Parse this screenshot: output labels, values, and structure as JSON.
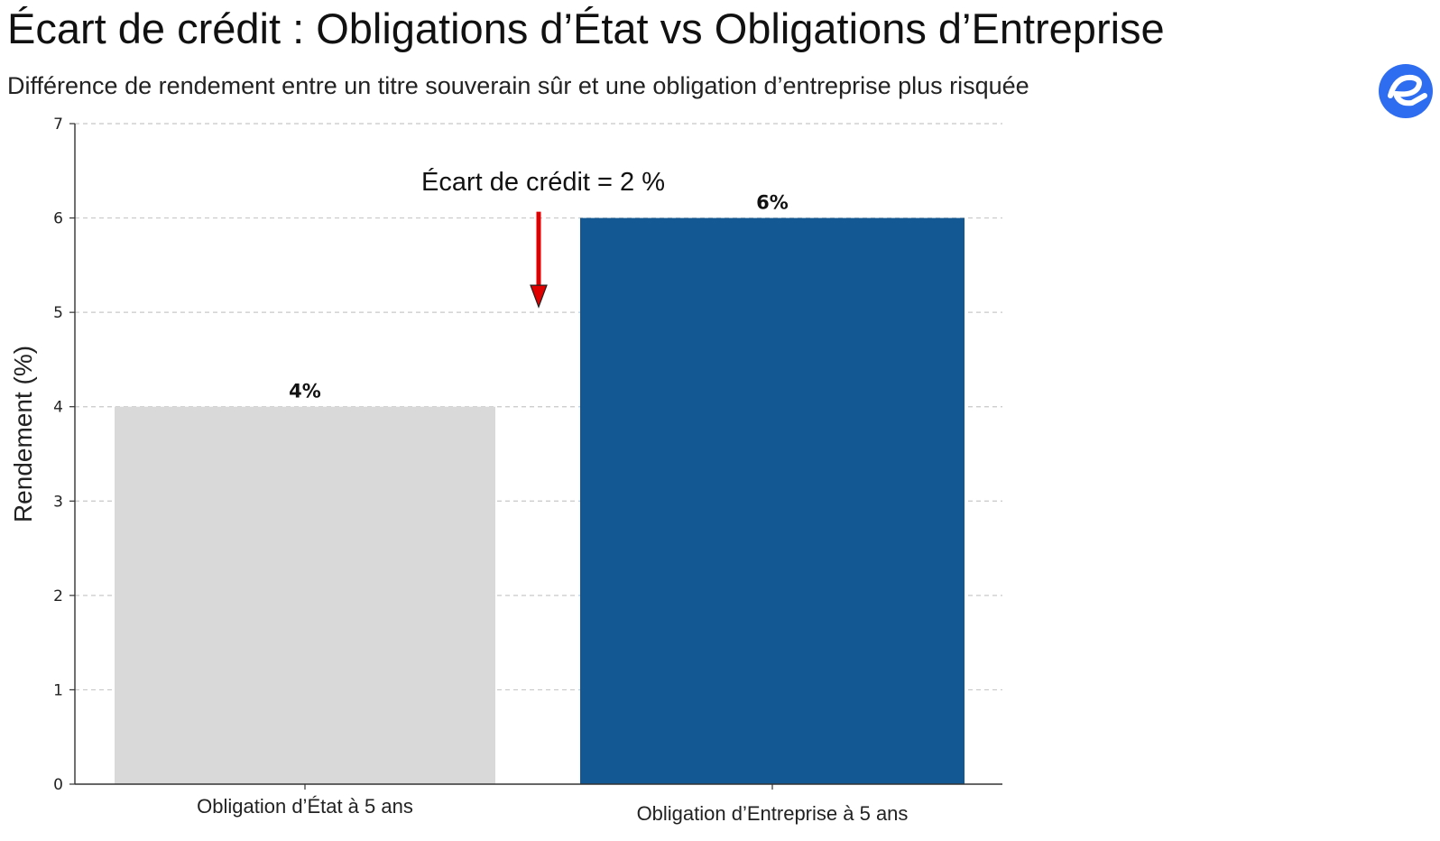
{
  "header": {
    "title": "Écart de crédit : Obligations d’État vs Obligations d’Entreprise",
    "subtitle": "Différence de rendement entre un titre souverain sûr et une obligation d’entreprise plus risquée",
    "logo_icon": "brand-e-logo-icon"
  },
  "colors": {
    "government_bar": "#d9d9d9",
    "corporate_bar": "#135892",
    "arrow": "#e00000",
    "grid": "#c8c8c8",
    "logo": "#2f6df0"
  },
  "chart_data": {
    "type": "bar",
    "categories": [
      "Obligation d’État à 5 ans",
      "Obligation d’Entreprise à 5 ans"
    ],
    "values": [
      4,
      6
    ],
    "value_labels": [
      "4%",
      "6%"
    ],
    "bar_colors": [
      "#d9d9d9",
      "#135892"
    ],
    "title": "Écart de crédit : Obligations d’État vs Obligations d’Entreprise",
    "subtitle": "Différence de rendement entre un titre souverain sûr et une obligation d’entreprise plus risquée",
    "xlabel": "",
    "ylabel": "Rendement (%)",
    "ylim": [
      0,
      7
    ],
    "yticks": [
      0,
      1,
      2,
      3,
      4,
      5,
      6,
      7
    ],
    "grid": true,
    "grid_style": "dashed horizontal",
    "annotation": {
      "text": "Écart de crédit = 2 %",
      "arrow_from": 6,
      "arrow_to": 5,
      "arrow_color": "#e00000"
    }
  }
}
